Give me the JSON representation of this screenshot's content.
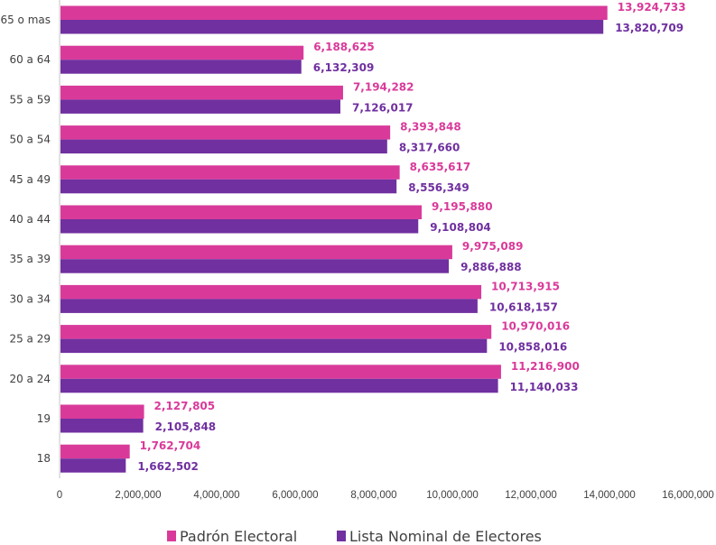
{
  "chart_data": {
    "type": "bar",
    "orientation": "horizontal",
    "categories": [
      "65 o mas",
      "60 a 64",
      "55 a 59",
      "50 a 54",
      "45 a 49",
      "40 a 44",
      "35 a 39",
      "30 a 34",
      "25 a 29",
      "20 a 24",
      "19",
      "18"
    ],
    "series": [
      {
        "name": "Padrón Electoral",
        "color": "#d93a9a",
        "values": [
          13924733,
          6188625,
          7194282,
          8393848,
          8635617,
          9195880,
          9975089,
          10713915,
          10970016,
          11216900,
          2127805,
          1762704
        ],
        "labels": [
          "13,924,733",
          "6,188,625",
          "7,194,282",
          "8,393,848",
          "8,635,617",
          "9,195,880",
          "9,975,089",
          "10,713,915",
          "10,970,016",
          "11,216,900",
          "2,127,805",
          "1,762,704"
        ]
      },
      {
        "name": "Lista Nominal de Electores",
        "color": "#7030a0",
        "values": [
          13820709,
          6132309,
          7126017,
          8317660,
          8556349,
          9108804,
          9886888,
          10618157,
          10858016,
          11140033,
          2105848,
          1662502
        ],
        "labels": [
          "13,820,709",
          "6,132,309",
          "7,126,017",
          "8,317,660",
          "8,556,349",
          "9,108,804",
          "9,886,888",
          "10,618,157",
          "10,858,016",
          "11,140,033",
          "2,105,848",
          "1,662,502"
        ]
      }
    ],
    "xlim": [
      0,
      16000000
    ],
    "xticks": [
      "0",
      "2,000,000",
      "4,000,000",
      "6,000,000",
      "8,000,000",
      "10,000,000",
      "12,000,000",
      "14,000,000",
      "16,000,000"
    ],
    "grid": false,
    "legend": "bottom",
    "title": "",
    "xlabel": "",
    "ylabel": ""
  }
}
